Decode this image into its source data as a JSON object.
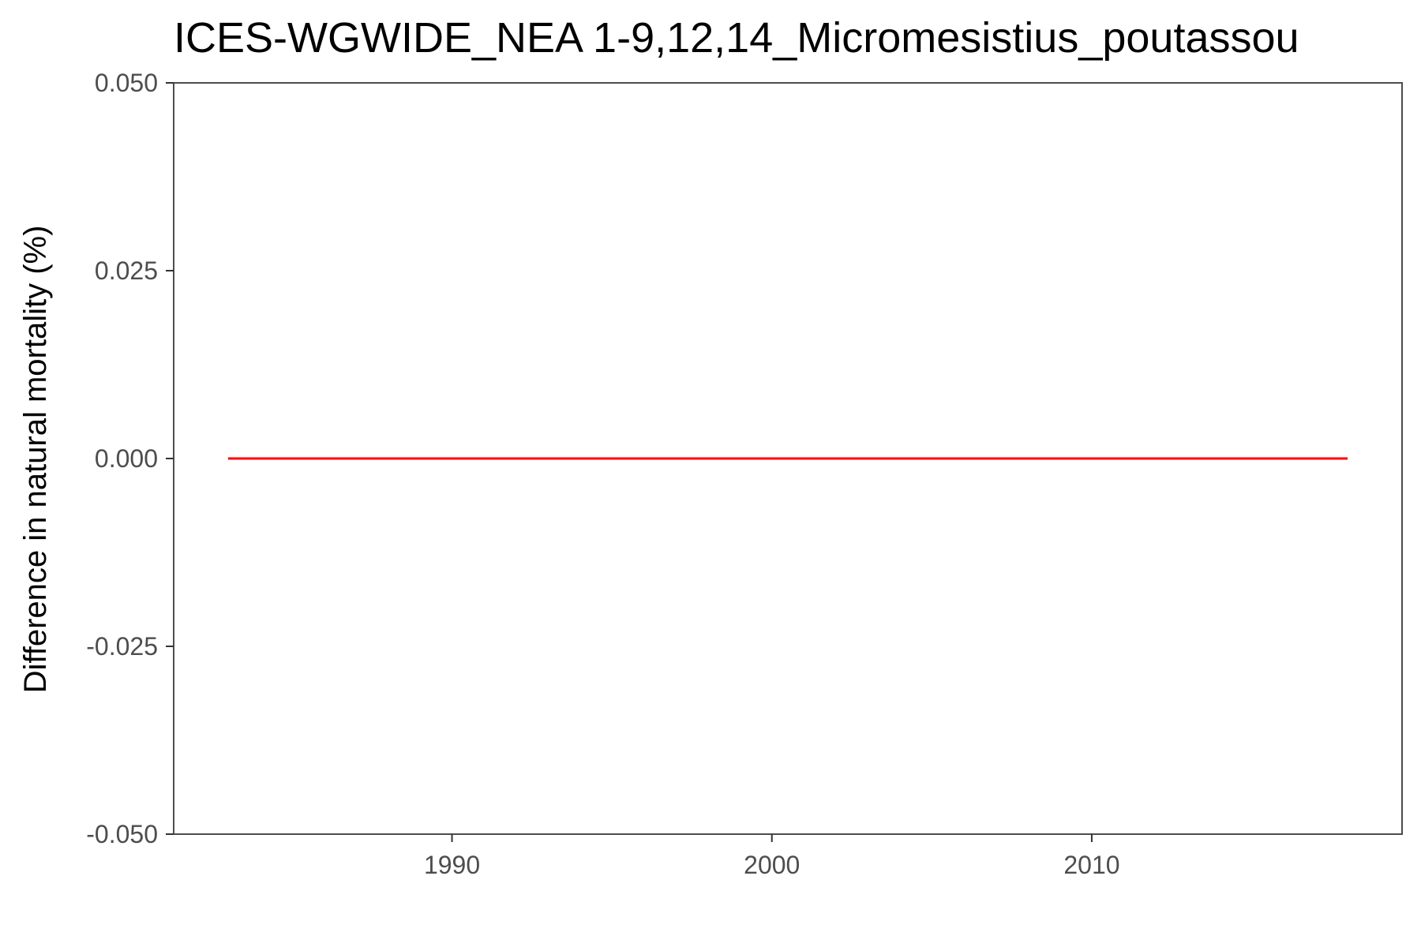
{
  "chart_data": {
    "type": "line",
    "title": "ICES-WGWIDE_NEA 1-9,12,14_Micromesistius_poutassou",
    "xlabel": "",
    "ylabel": "Difference in natural mortality (%)",
    "xlim": [
      1981.3,
      2019.7
    ],
    "ylim": [
      -0.05,
      0.05
    ],
    "x_ticks": [
      1990,
      2000,
      2010
    ],
    "x_tick_labels": [
      "1990",
      "2000",
      "2010"
    ],
    "y_ticks": [
      0.05,
      0.025,
      0.0,
      -0.025,
      -0.05
    ],
    "y_tick_labels": [
      "0.050",
      "0.025",
      "0.000",
      "-0.025",
      "-0.050"
    ],
    "grid": false,
    "series": [
      {
        "color": "#ff0000",
        "x": [
          1983,
          2018
        ],
        "y": [
          0.0,
          0.0
        ]
      }
    ]
  }
}
